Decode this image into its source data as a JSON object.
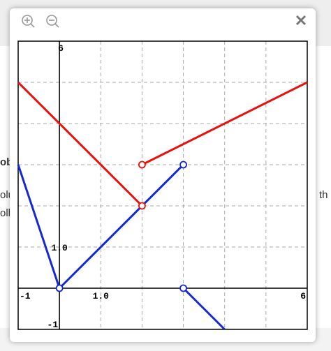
{
  "background": {
    "fragments": [
      "ob",
      "olu",
      "oll",
      "th"
    ]
  },
  "graph": {
    "xlim": [
      -1,
      6
    ],
    "ylim": [
      -1,
      6
    ],
    "xticks": [
      -1,
      0,
      1,
      2,
      3,
      4,
      5,
      6
    ],
    "yticks": [
      -1,
      0,
      1,
      2,
      3,
      4,
      5,
      6
    ],
    "x_labels": [
      -1,
      {
        "value": 1,
        "label": "1.0"
      },
      6
    ],
    "y_labels": [
      6,
      {
        "value": 1,
        "label": "1.0"
      },
      -1
    ],
    "grid": true,
    "series": [
      {
        "color": "#e8120c",
        "segments": [
          {
            "x": [
              -1,
              2
            ],
            "y": [
              5,
              2
            ]
          },
          {
            "x": [
              2,
              6
            ],
            "y": [
              3,
              5
            ]
          }
        ],
        "open_points": [
          {
            "x": 2,
            "y": 3
          },
          {
            "x": 2,
            "y": 2
          }
        ]
      },
      {
        "color": "#1428d4",
        "segments": [
          {
            "x": [
              -1,
              0
            ],
            "y": [
              3,
              0
            ]
          },
          {
            "x": [
              0,
              3
            ],
            "y": [
              0,
              3
            ]
          },
          {
            "x": [
              3,
              4
            ],
            "y": [
              0,
              -1
            ]
          }
        ],
        "open_points": [
          {
            "x": 0,
            "y": 0
          },
          {
            "x": 3,
            "y": 3
          },
          {
            "x": 3,
            "y": 0
          }
        ]
      }
    ]
  }
}
